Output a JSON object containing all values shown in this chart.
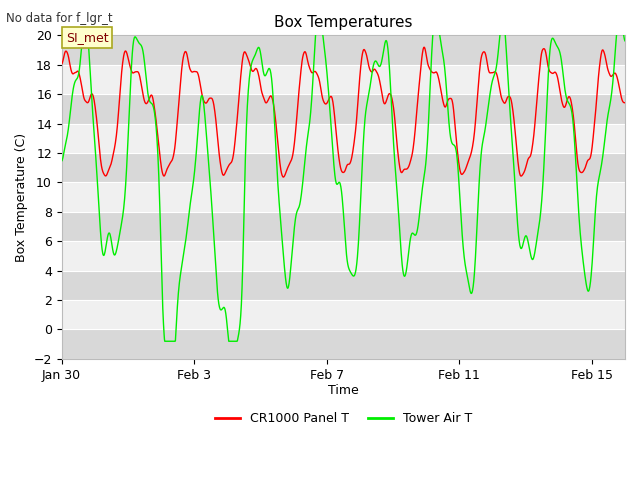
{
  "title": "Box Temperatures",
  "top_left_text": "No data for f_lgr_t",
  "annotation_text": "SI_met",
  "ylabel": "Box Temperature (C)",
  "xlabel": "Time",
  "ylim": [
    -2,
    20
  ],
  "yticks": [
    -2,
    0,
    2,
    4,
    6,
    8,
    10,
    12,
    14,
    16,
    18,
    20
  ],
  "xtick_labels": [
    "Jan 30",
    "Feb 3",
    "Feb 7",
    "Feb 11",
    "Feb 15"
  ],
  "xtick_positions": [
    0,
    4,
    8,
    12,
    16
  ],
  "legend_labels": [
    "CR1000 Panel T",
    "Tower Air T"
  ],
  "legend_colors": [
    "#ff0000",
    "#00ee00"
  ],
  "line_colors": [
    "#ff0000",
    "#00ee00"
  ],
  "bg_color": "#ffffff",
  "plot_bg_color": "#f0f0f0",
  "band_color_light": "#e8e8e8",
  "band_color_dark": "#d8d8d8",
  "grid_color": "#ffffff"
}
